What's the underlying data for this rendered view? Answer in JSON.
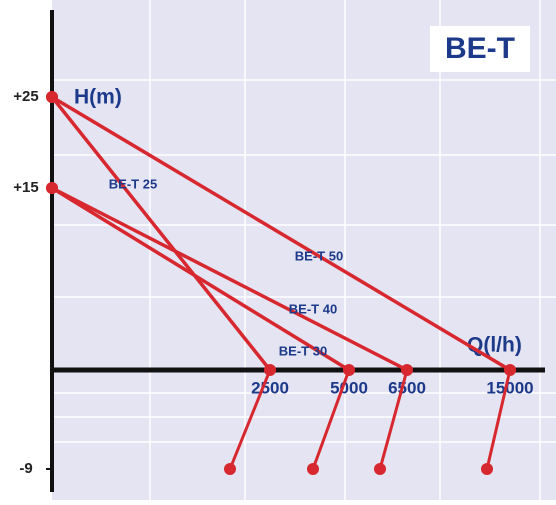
{
  "chart_data": {
    "type": "line",
    "title": "BE-T",
    "y_label": "H(m)",
    "x_label": "Q(l/h)",
    "xticks": [
      2500,
      5000,
      6500,
      15000
    ],
    "yticks": [
      {
        "value": 25,
        "label": "+25"
      },
      {
        "value": 15,
        "label": "+15"
      },
      -9
    ],
    "grid": true,
    "series": [
      {
        "name": "BE-T 25",
        "color": "#d8282f",
        "x": [
          0,
          2500
        ],
        "values": [
          25,
          0
        ]
      },
      {
        "name": "BE-T 30",
        "color": "#d8282f",
        "x": [
          0,
          5000
        ],
        "values": [
          15,
          0
        ]
      },
      {
        "name": "BE-T 40",
        "color": "#d8282f",
        "x": [
          0,
          6500
        ],
        "values": [
          15,
          0
        ]
      },
      {
        "name": "BE-T 50",
        "color": "#d8282f",
        "x": [
          0,
          15000
        ],
        "values": [
          25,
          0
        ]
      }
    ]
  }
}
